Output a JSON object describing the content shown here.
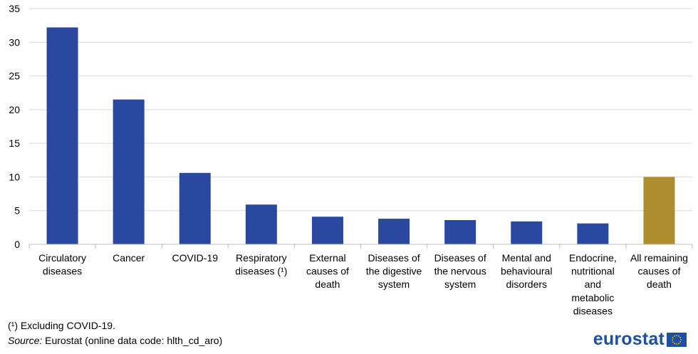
{
  "chart_data": {
    "type": "bar",
    "categories": [
      [
        "Circulatory",
        "diseases"
      ],
      [
        "Cancer"
      ],
      [
        "COVID-19"
      ],
      [
        "Respiratory",
        "diseases (¹)"
      ],
      [
        "External",
        "causes of",
        "death"
      ],
      [
        "Diseases of",
        "the digestive",
        "system"
      ],
      [
        "Diseases of",
        "the nervous",
        "system"
      ],
      [
        "Mental and",
        "behavioural",
        "disorders"
      ],
      [
        "Endocrine,",
        "nutritional",
        "and",
        "metabolic",
        "diseases"
      ],
      [
        "All remaining",
        "causes of",
        "death"
      ]
    ],
    "values": [
      32.2,
      21.5,
      10.6,
      5.9,
      4.1,
      3.8,
      3.6,
      3.4,
      3.1,
      10.0
    ],
    "bar_colors": [
      "#2a48a0",
      "#2a48a0",
      "#2a48a0",
      "#2a48a0",
      "#2a48a0",
      "#2a48a0",
      "#2a48a0",
      "#2a48a0",
      "#2a48a0",
      "#ad8d2e"
    ],
    "ylim": [
      0,
      35
    ],
    "yticks": [
      0,
      5,
      10,
      15,
      20,
      25,
      30,
      35
    ],
    "grid": true,
    "title": "",
    "xlabel": "",
    "ylabel": ""
  },
  "footnotes": {
    "note": "(¹) Excluding COVID-19.",
    "source_label": "Source:",
    "source_text": " Eurostat (online data code: hlth_cd_aro)"
  },
  "logo": {
    "text": "eurostat",
    "colors": {
      "text": "#1e4fa0",
      "flag": "#1e4fa0",
      "stars": "#ffd400"
    }
  }
}
